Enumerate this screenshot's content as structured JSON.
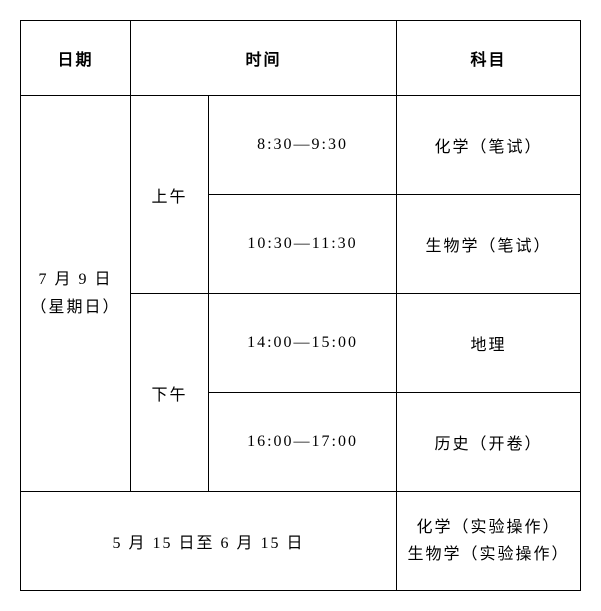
{
  "header": {
    "date": "日期",
    "time": "时间",
    "subject": "科目"
  },
  "date_cell": "7 月 9 日\n（星期日）",
  "periods": {
    "morning": "上午",
    "afternoon": "下午"
  },
  "rows": [
    {
      "time": "8:30—9:30",
      "subject": "化学（笔试）"
    },
    {
      "time": "10:30—11:30",
      "subject": "生物学（笔试）"
    },
    {
      "time": "14:00—15:00",
      "subject": "地理"
    },
    {
      "time": "16:00—17:00",
      "subject": "历史（开卷）"
    }
  ],
  "footer": {
    "date_range": "5 月 15 日至 6 月 15 日",
    "subjects": "化学（实验操作）\n生物学（实验操作）"
  },
  "style": {
    "border_color": "#000000",
    "background": "#ffffff",
    "font_family": "SimSun",
    "base_font_size": 16,
    "letter_spacing": 2
  }
}
